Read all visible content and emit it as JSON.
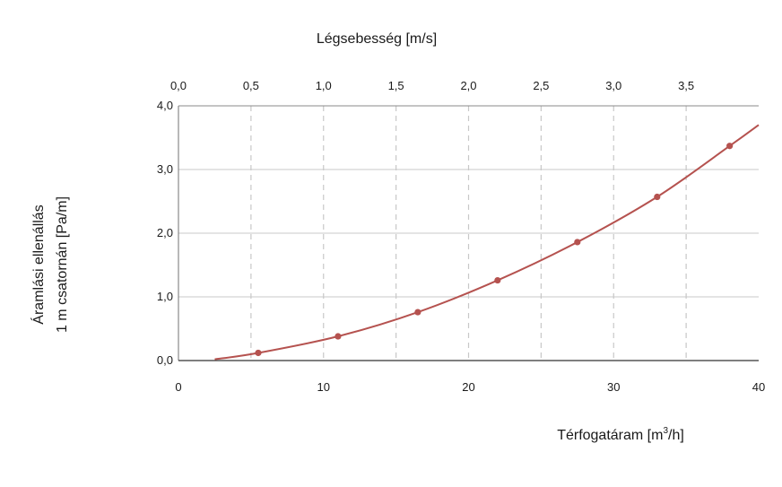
{
  "chart_data": {
    "type": "line",
    "top_axis": {
      "label": "Légsebesség [m/s]",
      "ticks": [
        0.0,
        0.5,
        1.0,
        1.5,
        2.0,
        2.5,
        3.0,
        3.5
      ],
      "tick_labels": [
        "0,0",
        "0,5",
        "1,0",
        "1,5",
        "2,0",
        "2,5",
        "3,0",
        "3,5"
      ]
    },
    "x_axis": {
      "label_main": "Térfogatáram [m",
      "label_sup": "3",
      "label_end": "/h]",
      "range": [
        0,
        40
      ],
      "ticks": [
        0,
        10,
        20,
        30,
        40
      ],
      "tick_labels": [
        "0",
        "10",
        "20",
        "30",
        "40"
      ],
      "minor_grid": [
        5,
        15,
        25,
        35
      ]
    },
    "y_axis": {
      "label_line1": "Áramlási ellenállás",
      "label_line2": "1 m csatornán [Pa/m]",
      "range": [
        0,
        4
      ],
      "ticks": [
        0,
        1,
        2,
        3,
        4
      ],
      "tick_labels": [
        "0,0",
        "1,0",
        "2,0",
        "3,0",
        "4,0"
      ]
    },
    "curve": {
      "x": [
        2.5,
        5.5,
        11.0,
        16.5,
        22.0,
        27.5,
        33.0,
        38.0,
        40.0
      ],
      "y": [
        0.02,
        0.12,
        0.38,
        0.76,
        1.26,
        1.86,
        2.57,
        3.37,
        3.7
      ]
    },
    "markers": {
      "x": [
        5.5,
        11.0,
        16.5,
        22.0,
        27.5,
        33.0,
        38.0
      ],
      "y": [
        0.12,
        0.38,
        0.76,
        1.26,
        1.86,
        2.57,
        3.37
      ]
    },
    "grid": true,
    "colors": {
      "line": "#b5524f",
      "grid_dashed": "#c8c8c8",
      "grid_solid": "#c8c8c8",
      "frame": "#8a8a8a"
    }
  }
}
